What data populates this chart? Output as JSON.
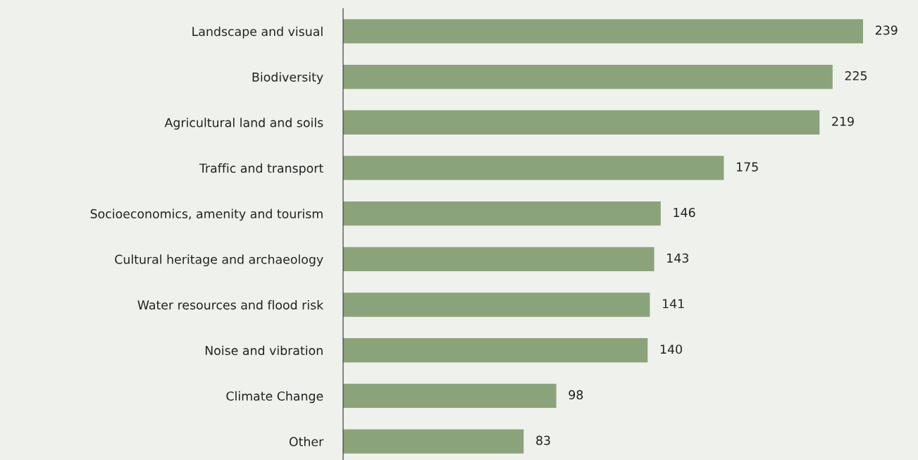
{
  "chart_data": {
    "type": "bar",
    "orientation": "horizontal",
    "categories": [
      "Landscape and visual",
      "Biodiversity",
      "Agricultural land and soils",
      "Traffic and transport",
      "Socioeconomics, amenity and tourism",
      "Cultural heritage and archaeology",
      "Water resources and flood risk",
      "Noise and vibration",
      "Climate Change",
      "Other"
    ],
    "values": [
      239,
      225,
      219,
      175,
      146,
      143,
      141,
      140,
      98,
      83
    ],
    "color": "#8ba37a",
    "xlim": [
      0,
      239
    ],
    "data_labels": true,
    "grid": false,
    "legend": false
  }
}
